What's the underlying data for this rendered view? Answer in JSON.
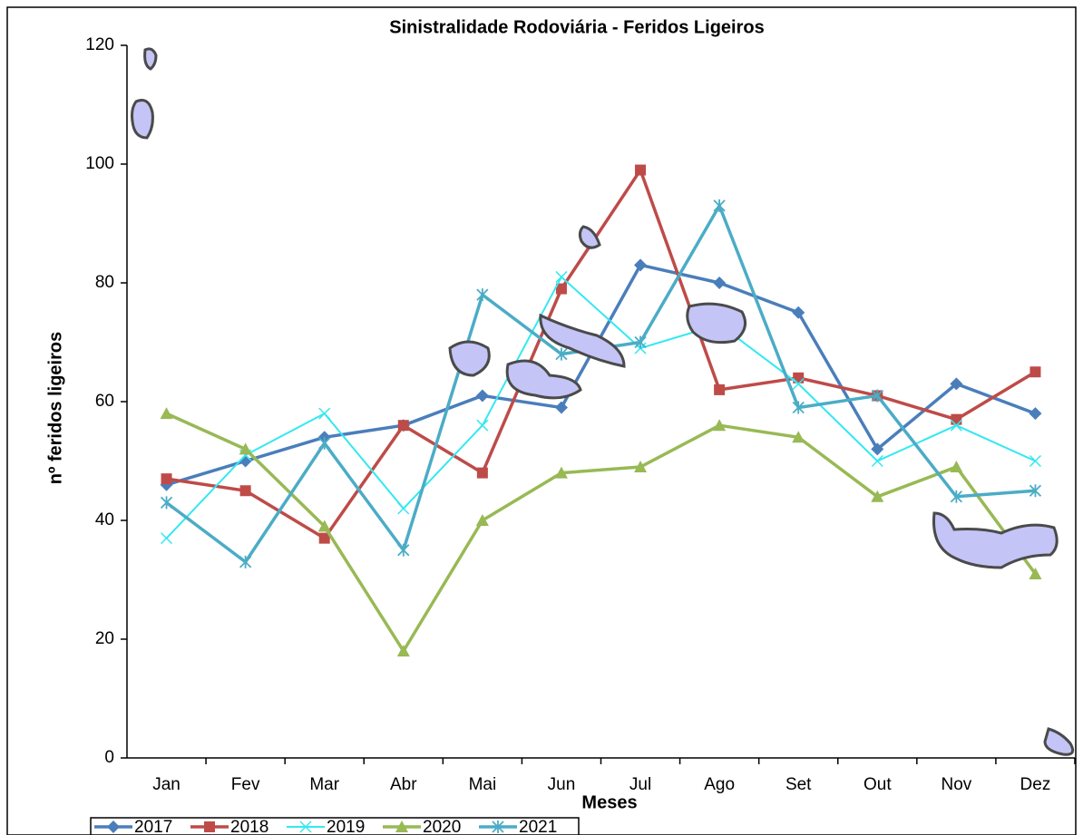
{
  "chart_data": {
    "type": "line",
    "title": "Sinistralidade Rodoviária - Feridos Ligeiros",
    "x_label": "Meses",
    "y_label": "nº feridos ligeiros",
    "categories": [
      "Jan",
      "Fev",
      "Mar",
      "Abr",
      "Mai",
      "Jun",
      "Jul",
      "Ago",
      "Set",
      "Out",
      "Nov",
      "Dez"
    ],
    "ylim": [
      0,
      120
    ],
    "yticks": [
      0,
      20,
      40,
      60,
      80,
      100,
      120
    ],
    "grid": false,
    "legend": "bottom",
    "series": [
      {
        "name": "2017",
        "color": "#4a7ebb",
        "marker": "diamond",
        "values": [
          46,
          50,
          54,
          56,
          61,
          59,
          83,
          80,
          75,
          52,
          63,
          58
        ]
      },
      {
        "name": "2018",
        "color": "#be4b48",
        "marker": "square",
        "values": [
          47,
          45,
          37,
          56,
          48,
          79,
          99,
          62,
          64,
          61,
          57,
          65
        ]
      },
      {
        "name": "2019",
        "color": "#33e8f0",
        "marker": "x",
        "values": [
          37,
          51,
          58,
          42,
          56,
          81,
          69,
          73,
          63,
          50,
          56,
          50
        ]
      },
      {
        "name": "2020",
        "color": "#98b954",
        "marker": "triangle",
        "values": [
          58,
          52,
          39,
          18,
          40,
          48,
          49,
          56,
          54,
          44,
          49,
          31
        ]
      },
      {
        "name": "2021",
        "color": "#4bacc6",
        "marker": "star",
        "values": [
          43,
          33,
          53,
          35,
          78,
          68,
          70,
          93,
          59,
          61,
          44,
          45
        ]
      }
    ]
  }
}
